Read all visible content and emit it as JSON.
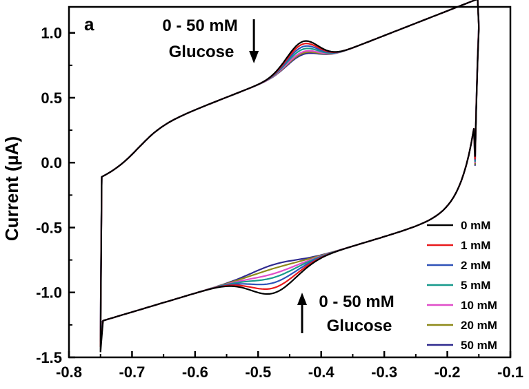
{
  "chart_data": {
    "type": "line",
    "panel_label": "a",
    "xlabel": "",
    "ylabel": "Current (µA)",
    "xlim": [
      -0.8,
      -0.1
    ],
    "ylim": [
      -1.5,
      1.2
    ],
    "x_ticks": [
      -0.8,
      -0.7,
      -0.6,
      -0.5,
      -0.4,
      -0.3,
      -0.2,
      -0.1
    ],
    "x_tick_labels": [
      "-0.8",
      "-0.7",
      "-0.6",
      "-0.5",
      "-0.4",
      "-0.3",
      "-0.2",
      "-0.1"
    ],
    "y_ticks": [
      -1.5,
      -1.0,
      -0.5,
      0.0,
      0.5,
      1.0
    ],
    "y_tick_labels": [
      "-1.5",
      "-1.0",
      "-0.5",
      "0.0",
      "0.5",
      "1.0"
    ],
    "legend_position": "bottom-right",
    "annotations": [
      {
        "lines": [
          "0 - 50 mM",
          "Glucose"
        ],
        "arrow": "down",
        "anchor_x": -0.51
      },
      {
        "lines": [
          "0 - 50 mM",
          "Glucose"
        ],
        "arrow": "up",
        "anchor_x": -0.47
      }
    ],
    "series": [
      {
        "name": "0 mM",
        "color": "#000000",
        "oxidation_peak": 0.91,
        "reduction_peak": -1.07,
        "top_start": -1.46,
        "bottom_start": -1.46,
        "top_end": 1.03,
        "bottom_end": -0.15
      },
      {
        "name": "1 mM",
        "color": "#e8191b",
        "oxidation_peak": 0.89,
        "reduction_peak": -1.03,
        "top_start": -1.42,
        "bottom_start": -1.42,
        "top_end": 1.04,
        "bottom_end": -0.17
      },
      {
        "name": "2 mM",
        "color": "#2e52b8",
        "oxidation_peak": 0.87,
        "reduction_peak": -0.99,
        "top_start": -1.38,
        "bottom_start": -1.38,
        "top_end": 1.05,
        "bottom_end": -0.18
      },
      {
        "name": "5 mM",
        "color": "#179a8c",
        "oxidation_peak": 0.85,
        "reduction_peak": -0.95,
        "top_start": -1.34,
        "bottom_start": -1.34,
        "top_end": 1.05,
        "bottom_end": -0.19
      },
      {
        "name": "10 mM",
        "color": "#e04ec9",
        "oxidation_peak": 0.83,
        "reduction_peak": -0.92,
        "top_start": -1.3,
        "bottom_start": -1.3,
        "top_end": 1.06,
        "bottom_end": -0.2
      },
      {
        "name": "20 mM",
        "color": "#8e8a1a",
        "oxidation_peak": 0.82,
        "reduction_peak": -0.88,
        "top_start": -1.27,
        "bottom_start": -1.27,
        "top_end": 1.06,
        "bottom_end": -0.21
      },
      {
        "name": "50 mM",
        "color": "#2f2a8f",
        "oxidation_peak": 0.81,
        "reduction_peak": -0.85,
        "top_start": -1.24,
        "bottom_start": -1.24,
        "top_end": 1.07,
        "bottom_end": -0.22
      }
    ]
  }
}
